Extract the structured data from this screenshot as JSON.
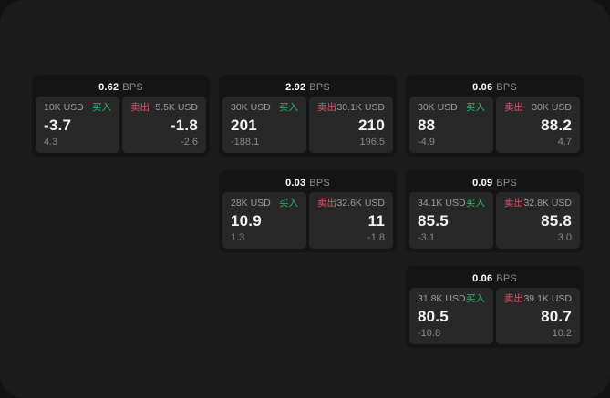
{
  "page": {
    "background": "#121212",
    "panel_background": "#1c1c1c"
  },
  "labels": {
    "bps_unit": "BPS",
    "buy": "买入",
    "sell": "卖出"
  },
  "colors": {
    "buy": "#35b16f",
    "sell": "#d9566a",
    "price_text": "#f4f4f4",
    "muted_text": "#8f8f8f"
  },
  "cards": [
    {
      "col": 0,
      "row": 0,
      "bps": "0.62",
      "buy": {
        "amount": "10K USD",
        "action": "买入",
        "price": "-3.7",
        "secondary": "4.3"
      },
      "sell": {
        "amount": "5.5K USD",
        "action": "卖出",
        "price": "-1.8",
        "secondary": "-2.6"
      }
    },
    {
      "col": 1,
      "row": 0,
      "bps": "2.92",
      "buy": {
        "amount": "30K USD",
        "action": "买入",
        "price": "201",
        "secondary": "-188.1"
      },
      "sell": {
        "amount": "30.1K USD",
        "action": "卖出",
        "price": "210",
        "secondary": "196.5"
      }
    },
    {
      "col": 2,
      "row": 0,
      "bps": "0.06",
      "buy": {
        "amount": "30K USD",
        "action": "买入",
        "price": "88",
        "secondary": "-4.9"
      },
      "sell": {
        "amount": "30K USD",
        "action": "卖出",
        "price": "88.2",
        "secondary": "4.7"
      }
    },
    {
      "col": 1,
      "row": 1,
      "bps": "0.03",
      "buy": {
        "amount": "28K USD",
        "action": "买入",
        "price": "10.9",
        "secondary": "1.3"
      },
      "sell": {
        "amount": "32.6K USD",
        "action": "卖出",
        "price": "11",
        "secondary": "-1.8"
      }
    },
    {
      "col": 2,
      "row": 1,
      "bps": "0.09",
      "buy": {
        "amount": "34.1K USD",
        "action": "买入",
        "price": "85.5",
        "secondary": "-3.1"
      },
      "sell": {
        "amount": "32.8K USD",
        "action": "卖出",
        "price": "85.8",
        "secondary": "3.0"
      }
    },
    {
      "col": 2,
      "row": 2,
      "bps": "0.06",
      "buy": {
        "amount": "31.8K USD",
        "action": "买入",
        "price": "80.5",
        "secondary": "-10.8"
      },
      "sell": {
        "amount": "39.1K USD",
        "action": "卖出",
        "price": "80.7",
        "secondary": "10.2"
      }
    }
  ]
}
